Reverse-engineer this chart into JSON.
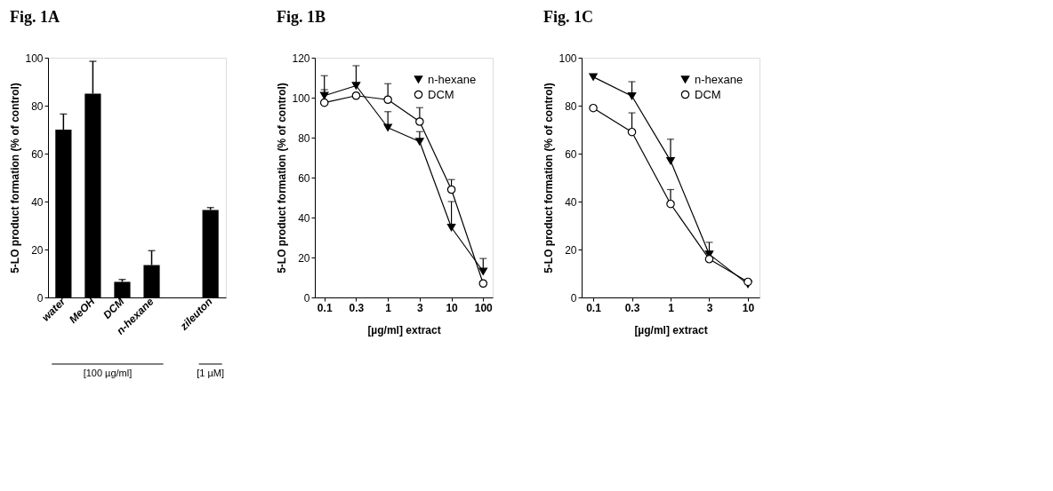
{
  "chart_data": [
    {
      "type": "bar",
      "title": "Fig. 1A",
      "ylabel": "5-LO product formation (% of control)",
      "categories": [
        "water",
        "MeOH",
        "DCM",
        "n-hexane",
        null,
        "zileuton"
      ],
      "values": [
        70,
        85,
        6.5,
        13.5,
        null,
        36.5
      ],
      "errors": [
        [
          70,
          76.5
        ],
        [
          85,
          98.5
        ],
        [
          6.5,
          7.5
        ],
        [
          13.5,
          19.5
        ],
        null,
        [
          36.5,
          37.5
        ]
      ],
      "color": "#000000",
      "ylim": [
        0,
        100
      ],
      "yticks": [
        0,
        20,
        40,
        60,
        80,
        100
      ],
      "annotations": [
        "[100 µg/ml]",
        "[1 µM]"
      ]
    },
    {
      "type": "line",
      "title": "Fig. 1B",
      "ylabel": "5-LO product formation (% of control)",
      "xlabel": "[µg/ml] extract",
      "categories": [
        "0.1",
        "0.3",
        "1",
        "3",
        "10",
        "100"
      ],
      "ylim": [
        0,
        120
      ],
      "yticks": [
        0,
        20,
        40,
        60,
        80,
        100,
        120
      ],
      "legend": "top right",
      "series": [
        {
          "name": "n-hexane",
          "color": "#000000",
          "marker": "triangle",
          "values": [
            101,
            106,
            85,
            78,
            35,
            13
          ],
          "errors": [
            [
              101,
              111
            ],
            [
              106,
              116
            ],
            [
              85,
              93
            ],
            [
              78,
              83
            ],
            [
              35,
              48
            ],
            [
              13,
              19.5
            ]
          ]
        },
        {
          "name": "DCM",
          "color": "#000000",
          "marker": "circle",
          "values": [
            97.5,
            101,
            99,
            88,
            54,
            7
          ],
          "errors": [
            [
              97.5,
              104
            ],
            null,
            [
              99,
              107
            ],
            [
              88,
              95
            ],
            [
              54,
              59
            ],
            null
          ]
        }
      ]
    },
    {
      "type": "line",
      "title": "Fig. 1C",
      "ylabel": "5-LO product formation (% of control)",
      "xlabel": "[µg/ml] extract",
      "categories": [
        "0.1",
        "0.3",
        "1",
        "3",
        "10"
      ],
      "ylim": [
        0,
        100
      ],
      "yticks": [
        0,
        20,
        40,
        60,
        80,
        100
      ],
      "legend": "top right",
      "series": [
        {
          "name": "n-hexane",
          "color": "#000000",
          "marker": "triangle",
          "values": [
            92,
            84,
            57,
            18,
            5.5
          ],
          "errors": [
            null,
            [
              84,
              90
            ],
            [
              57,
              66
            ],
            [
              18,
              23
            ],
            null
          ]
        },
        {
          "name": "DCM",
          "color": "#000000",
          "marker": "circle",
          "values": [
            79,
            69,
            39,
            16,
            6.5
          ],
          "errors": [
            null,
            [
              69,
              77
            ],
            [
              39,
              45
            ],
            null,
            null
          ]
        }
      ]
    }
  ]
}
